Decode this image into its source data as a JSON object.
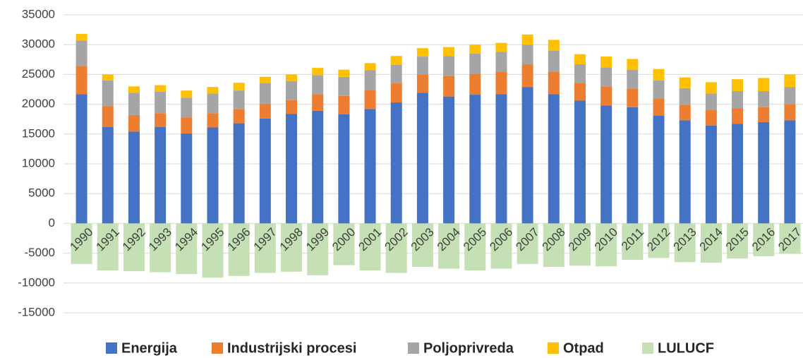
{
  "chart_data": {
    "type": "bar",
    "stacked": true,
    "categories": [
      "1990",
      "1991",
      "1992",
      "1993",
      "1994",
      "1995",
      "1996",
      "1997",
      "1998",
      "1999",
      "2000",
      "2001",
      "2002",
      "2003",
      "2004",
      "2005",
      "2006",
      "2007",
      "2008",
      "2009",
      "2010",
      "2011",
      "2012",
      "2013",
      "2014",
      "2015",
      "2016",
      "2017"
    ],
    "series": [
      {
        "name": "Energija",
        "color": "#4472c4",
        "values": [
          21700,
          16200,
          15400,
          16200,
          15100,
          16100,
          16800,
          17600,
          18400,
          18900,
          18300,
          19200,
          20300,
          21900,
          21300,
          21600,
          21700,
          22900,
          21700,
          20600,
          19800,
          19500,
          18100,
          17300,
          16400,
          16700,
          17000,
          17300
        ]
      },
      {
        "name": "Industrijski procesi",
        "color": "#ed7d31",
        "values": [
          4700,
          3500,
          2800,
          2300,
          2700,
          2400,
          2400,
          2500,
          2300,
          2800,
          3100,
          3200,
          3200,
          3100,
          3400,
          3500,
          3700,
          3800,
          3800,
          3000,
          3200,
          3100,
          2800,
          2600,
          2700,
          2600,
          2500,
          2700
        ]
      },
      {
        "name": "Poljoprivreda",
        "color": "#a5a5a5",
        "values": [
          4300,
          4300,
          3700,
          3600,
          3300,
          3300,
          3100,
          3500,
          3200,
          3200,
          3200,
          3300,
          3100,
          3000,
          3400,
          3400,
          3400,
          3300,
          3500,
          3100,
          3200,
          3200,
          3100,
          2800,
          2700,
          2900,
          2700,
          2900
        ]
      },
      {
        "name": "Otpad",
        "color": "#ffc000",
        "values": [
          1100,
          1000,
          1100,
          1100,
          1200,
          1100,
          1300,
          1000,
          1100,
          1200,
          1200,
          1200,
          1500,
          1400,
          1500,
          1500,
          1500,
          1700,
          1800,
          1700,
          1800,
          1800,
          1900,
          1800,
          1900,
          2000,
          2200,
          2100
        ]
      },
      {
        "name": "LULUCF",
        "color": "#c5e0b4",
        "values": [
          -6800,
          -7900,
          -8000,
          -8200,
          -8500,
          -9100,
          -8800,
          -8300,
          -8100,
          -8700,
          -7000,
          -7900,
          -8300,
          -7300,
          -7600,
          -7900,
          -7600,
          -6800,
          -7300,
          -7100,
          -7200,
          -6100,
          -5800,
          -6500,
          -6600,
          -5900,
          -5500,
          -5100
        ]
      }
    ],
    "ylim": [
      -15000,
      35000
    ],
    "yticks": [
      -15000,
      -10000,
      -5000,
      0,
      5000,
      10000,
      15000,
      20000,
      25000,
      30000,
      35000
    ],
    "grid": true,
    "legend": "bottom"
  }
}
